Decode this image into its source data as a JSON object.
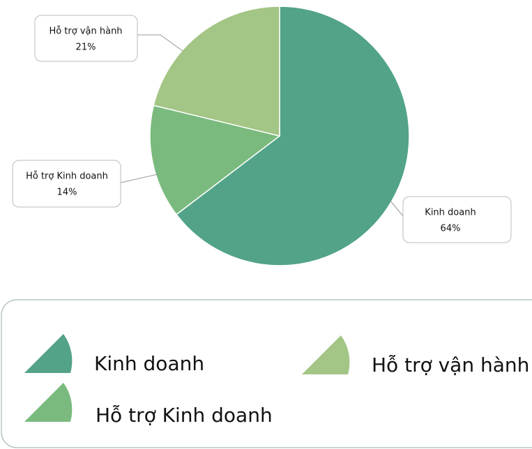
{
  "chart_data": {
    "type": "pie",
    "categories": [
      "Kinh doanh",
      "Hỗ trợ Kinh doanh",
      "Hỗ trợ vận hành"
    ],
    "values": [
      64,
      14,
      21
    ],
    "value_labels": [
      "64%",
      "14%",
      "21%"
    ],
    "colors": [
      "#52a388",
      "#7aba7e",
      "#a3c585"
    ],
    "legend": "bottom"
  }
}
